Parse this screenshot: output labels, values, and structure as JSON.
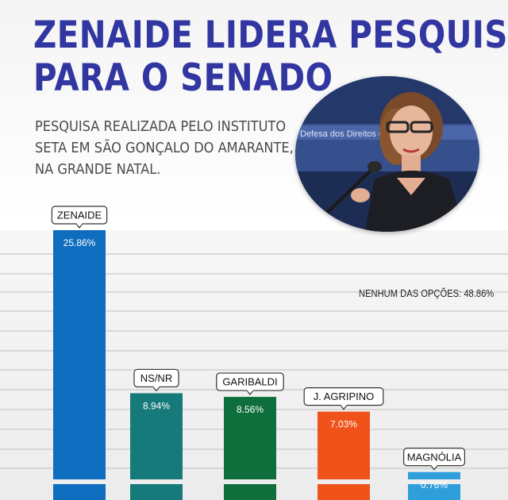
{
  "title_lines": [
    "ZENAIDE LIDERA PESQUISA",
    "PARA O SENADO"
  ],
  "subtitle_lines": [
    "PESQUISA REALIZADA PELO INSTITUTO",
    "SETA EM SÃO GONÇALO DO AMARANTE,",
    "NA GRANDE NATAL."
  ],
  "photo_backdrop_text": "Defesa dos Direitos d",
  "chart_data": {
    "type": "bar",
    "title": "ZENAIDE LIDERA PESQUISA PARA O SENADO",
    "categories": [
      "ZENAIDE",
      "NS/NR",
      "GARIBALDI",
      "J. AGRIPINO",
      "MAGNÓLIA"
    ],
    "values": [
      25.86,
      8.94,
      8.56,
      7.03,
      0.76
    ],
    "value_labels": [
      "25.86%",
      "8.94%",
      "8.56%",
      "7.03%",
      "0.76%"
    ],
    "colors": [
      "#0f6dbf",
      "#177a7a",
      "#0e6f3c",
      "#f0531a",
      "#2f9fdc"
    ],
    "ylabel": "",
    "grid": true,
    "annotation": "NENHUM DAS OPÇÕES: 48.86%"
  }
}
